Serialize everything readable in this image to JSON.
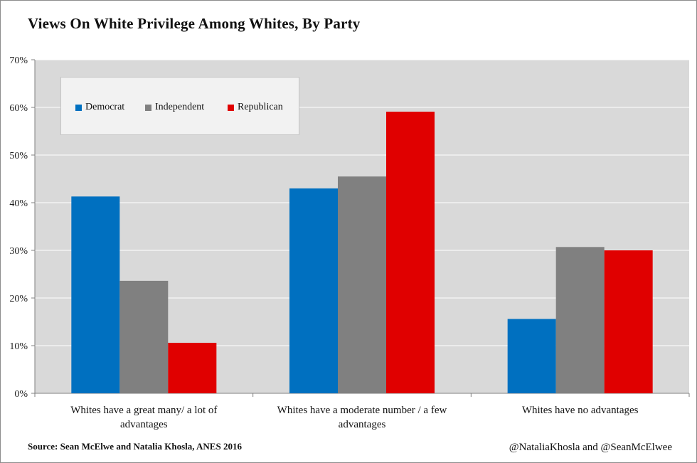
{
  "title": "Views On White Privilege Among Whites, By Party",
  "source_note": "Source: Sean McElwe and Natalia Khosla, ANES 2016",
  "credit": "@NataliaKhosla and @SeanMcElwee",
  "colors": {
    "plot_background": "#d9d9d9",
    "gridline": "#ffffff",
    "Democrat": "#0070c0",
    "Independent": "#808080",
    "Republican": "#e00000"
  },
  "chart_data": {
    "type": "bar",
    "title": "Views On White Privilege Among Whites, By Party",
    "categories": [
      [
        "Whites have a great many/ a lot of",
        "advantages"
      ],
      [
        "Whites have a moderate number / a few",
        "advantages"
      ],
      [
        "Whites have no advantages"
      ]
    ],
    "series": [
      {
        "name": "Democrat",
        "values": [
          41.3,
          43.0,
          15.6
        ]
      },
      {
        "name": "Independent",
        "values": [
          23.6,
          45.5,
          30.7
        ]
      },
      {
        "name": "Republican",
        "values": [
          10.6,
          59.1,
          30.0
        ]
      }
    ],
    "ylim": [
      0,
      70
    ],
    "y_ticks": [
      "0%",
      "10%",
      "20%",
      "30%",
      "40%",
      "50%",
      "60%",
      "70%"
    ],
    "xlabel": "",
    "ylabel": "",
    "grid": true,
    "legend_position": "top-left"
  }
}
